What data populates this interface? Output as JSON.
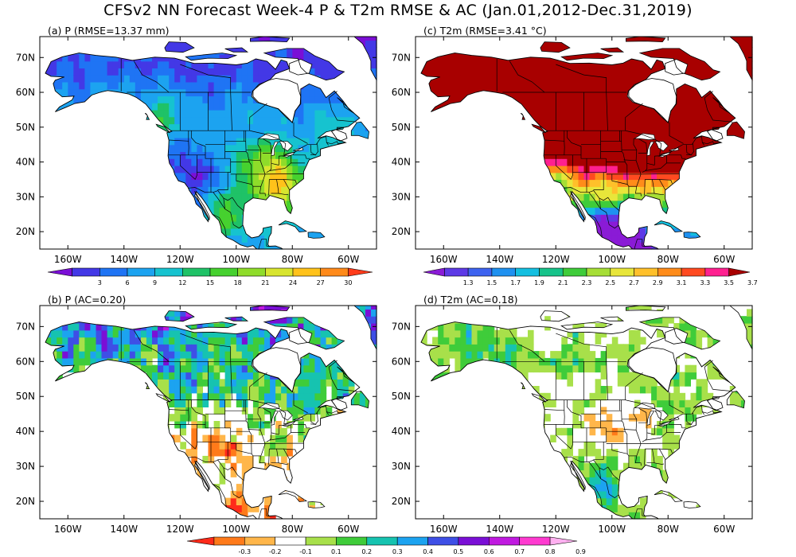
{
  "title": "CFSv2 NN Forecast Week-4 P & T2m RMSE & AC (Jan.01,2012-Dec.31,2019)",
  "lat_labels": [
    "70N",
    "60N",
    "50N",
    "40N",
    "30N",
    "20N"
  ],
  "lon_labels": [
    "160W",
    "140W",
    "120W",
    "100W",
    "80W",
    "60W"
  ],
  "panels": [
    {
      "title": "(a) P (RMSE=13.37 mm)",
      "field": "P RMSE",
      "scheme": "p_rmse"
    },
    {
      "title": "(c) T2m (RMSE=3.41 °C)",
      "field": "T2m RMSE",
      "scheme": "t_rmse"
    },
    {
      "title": "(b) P (AC=0.20)",
      "field": "P AC",
      "scheme": "ac"
    },
    {
      "title": "(d) T2m (AC=0.18)",
      "field": "T2m AC",
      "scheme": "ac"
    }
  ],
  "colorbars": {
    "p_rmse": {
      "labels": [
        "3",
        "6",
        "9",
        "12",
        "15",
        "18",
        "21",
        "24",
        "27",
        "30"
      ],
      "colors": [
        "#7a0fd6",
        "#4338e6",
        "#1f74f4",
        "#1ca3f0",
        "#16c3cf",
        "#1fc267",
        "#46d12f",
        "#8fdc2a",
        "#d8e52f",
        "#ffc21a",
        "#ff8a1a",
        "#ff3b1a"
      ]
    },
    "t_rmse": {
      "labels": [
        "1.3",
        "1.5",
        "1.7",
        "1.9",
        "2.1",
        "2.3",
        "2.5",
        "2.7",
        "2.9",
        "3.1",
        "3.3",
        "3.5",
        "3.7"
      ],
      "colors": [
        "#8a1bd6",
        "#5d3ae6",
        "#3e63f0",
        "#1f91f0",
        "#14bfe0",
        "#16c38a",
        "#3fcc3a",
        "#a6de36",
        "#e8e63a",
        "#ffc02a",
        "#ff8c1a",
        "#ff4a20",
        "#ff2090",
        "#a80000"
      ]
    },
    "ac": {
      "labels": [
        "-0.3",
        "-0.2",
        "-0.1",
        "0.1",
        "0.2",
        "0.3",
        "0.4",
        "0.5",
        "0.6",
        "0.7",
        "0.8",
        "0.9"
      ],
      "colors": [
        "#ff2a1a",
        "#ff7a1a",
        "#ffb64a",
        "#ffffff",
        "#a8e04a",
        "#3fcc3a",
        "#16c3b0",
        "#1ca3f0",
        "#3e4fe6",
        "#7a0fd6",
        "#c01ae0",
        "#ff3ad0",
        "#ffb0f0"
      ]
    }
  }
}
